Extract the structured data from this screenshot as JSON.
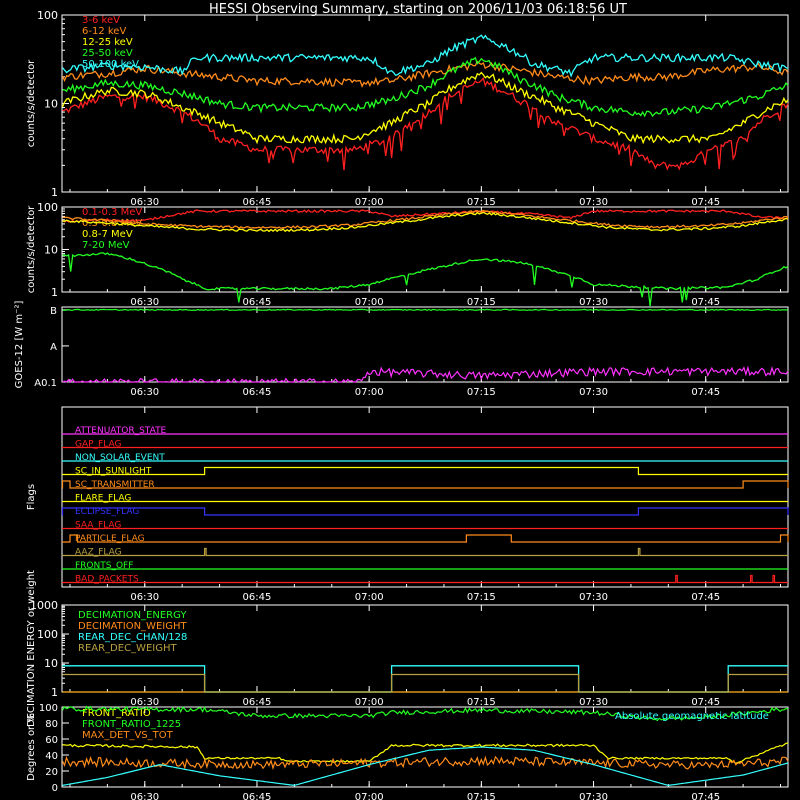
{
  "title": "HESSI Observing Summary, starting on 2006/11/03 06:18:56 UT",
  "colors": {
    "background": "#000000",
    "axes": "#ffffff",
    "red": "#ff2020",
    "orange": "#ff8c1a",
    "yellow": "#ffff00",
    "green": "#22ff22",
    "cyan": "#33ffff",
    "magenta": "#ff33ff",
    "blue": "#3333ff",
    "olive": "#b8a040"
  },
  "x_axis": {
    "start": "06:18:56",
    "end": "07:56:00",
    "tick_labels": [
      "06:30",
      "06:45",
      "07:00",
      "07:15",
      "07:30",
      "07:45"
    ]
  },
  "chart_data": [
    {
      "id": "low-energy",
      "type": "line",
      "ylabel": "counts/s/detector",
      "yscale": "log",
      "ylim": [
        1,
        100
      ],
      "ytick_labels": [
        "1",
        "10",
        "100"
      ],
      "series": [
        {
          "name": "3-6 keV",
          "color": "red",
          "x": [
            "06:19",
            "06:25",
            "06:30",
            "06:35",
            "06:40",
            "06:45",
            "06:52",
            "06:58",
            "07:03",
            "07:08",
            "07:15",
            "07:20",
            "07:25",
            "07:30",
            "07:35",
            "07:38",
            "07:42",
            "07:46",
            "07:50",
            "07:56"
          ],
          "y": [
            8,
            12,
            12,
            8,
            4,
            3,
            3,
            3,
            4,
            8,
            18,
            11,
            6,
            4,
            3,
            2,
            2,
            3,
            4,
            10
          ]
        },
        {
          "name": "6-12 keV",
          "color": "orange",
          "x": [
            "06:19",
            "06:25",
            "06:30",
            "06:35",
            "06:40",
            "06:45",
            "06:52",
            "06:58",
            "07:03",
            "07:08",
            "07:15",
            "07:20",
            "07:25",
            "07:30",
            "07:35",
            "07:40",
            "07:46",
            "07:52",
            "07:56"
          ],
          "y": [
            20,
            22,
            25,
            22,
            20,
            18,
            18,
            17,
            18,
            22,
            28,
            24,
            20,
            18,
            20,
            20,
            24,
            26,
            22
          ]
        },
        {
          "name": "12-25 keV",
          "color": "yellow",
          "x": [
            "06:19",
            "06:25",
            "06:30",
            "06:35",
            "06:40",
            "06:45",
            "06:52",
            "06:58",
            "07:03",
            "07:08",
            "07:15",
            "07:20",
            "07:25",
            "07:30",
            "07:35",
            "07:38",
            "07:42",
            "07:46",
            "07:50",
            "07:56"
          ],
          "y": [
            10,
            14,
            13,
            9,
            6,
            4,
            4,
            4,
            6,
            10,
            22,
            14,
            9,
            6,
            4,
            4,
            4,
            4,
            6,
            11
          ]
        },
        {
          "name": "25-50 keV",
          "color": "green",
          "x": [
            "06:19",
            "06:25",
            "06:30",
            "06:35",
            "06:40",
            "06:45",
            "06:52",
            "06:58",
            "07:03",
            "07:08",
            "07:15",
            "07:20",
            "07:25",
            "07:30",
            "07:35",
            "07:40",
            "07:46",
            "07:52",
            "07:56"
          ],
          "y": [
            14,
            17,
            16,
            13,
            10,
            9,
            9,
            9,
            11,
            16,
            32,
            19,
            12,
            9,
            8,
            8,
            9,
            12,
            16
          ]
        },
        {
          "name": "50-100 keV",
          "color": "cyan",
          "x": [
            "06:19",
            "06:25",
            "06:30",
            "06:35",
            "06:37",
            "06:40",
            "06:50",
            "07:00",
            "07:03",
            "07:08",
            "07:12",
            "07:15",
            "07:18",
            "07:22",
            "07:27",
            "07:30",
            "07:40",
            "07:48",
            "07:52",
            "07:56"
          ],
          "y": [
            24,
            27,
            26,
            23,
            33,
            33,
            33,
            33,
            22,
            28,
            45,
            55,
            45,
            28,
            22,
            33,
            33,
            33,
            28,
            25
          ]
        }
      ]
    },
    {
      "id": "high-energy",
      "type": "line",
      "ylabel": "counts/s/detector",
      "yscale": "log",
      "ylim": [
        1,
        100
      ],
      "ytick_labels": [
        "1",
        "10",
        "100"
      ],
      "series": [
        {
          "name": "0.1-0.3 MeV",
          "color": "red",
          "x": [
            "06:19",
            "06:25",
            "06:30",
            "06:37",
            "06:40",
            "06:50",
            "07:00",
            "07:03",
            "07:08",
            "07:15",
            "07:22",
            "07:27",
            "07:30",
            "07:40",
            "07:48",
            "07:52",
            "07:56"
          ],
          "y": [
            45,
            50,
            48,
            80,
            80,
            80,
            80,
            60,
            68,
            78,
            68,
            55,
            80,
            80,
            80,
            58,
            55
          ]
        },
        {
          "name": "0.3-0.8 MeV",
          "color": "orange",
          "x": [
            "06:19",
            "06:25",
            "06:30",
            "06:37",
            "06:45",
            "06:52",
            "06:58",
            "07:05",
            "07:15",
            "07:25",
            "07:32",
            "07:38",
            "07:45",
            "07:50",
            "07:56"
          ],
          "y": [
            55,
            48,
            40,
            35,
            33,
            34,
            38,
            52,
            80,
            52,
            38,
            34,
            36,
            42,
            58
          ]
        },
        {
          "name": "0.8-7 MeV",
          "color": "yellow",
          "x": [
            "06:19",
            "06:25",
            "06:30",
            "06:37",
            "06:45",
            "06:52",
            "06:58",
            "07:05",
            "07:15",
            "07:25",
            "07:32",
            "07:38",
            "07:45",
            "07:50",
            "07:56"
          ],
          "y": [
            48,
            42,
            36,
            30,
            28,
            29,
            33,
            46,
            72,
            46,
            33,
            29,
            31,
            36,
            52
          ]
        },
        {
          "name": "7-20 MeV",
          "color": "green",
          "x": [
            "06:19",
            "06:25",
            "06:28",
            "06:31",
            "06:35",
            "06:38",
            "06:45",
            "06:55",
            "07:00",
            "07:05",
            "07:10",
            "07:15",
            "07:20",
            "07:25",
            "07:30",
            "07:40",
            "07:48",
            "07:52",
            "07:56"
          ],
          "y": [
            7,
            8,
            6,
            4,
            2,
            1.2,
            1.2,
            1.2,
            1.5,
            2.5,
            4,
            6,
            5,
            3,
            1.5,
            1.2,
            1.3,
            2,
            4
          ]
        }
      ]
    },
    {
      "id": "goes",
      "type": "line",
      "ylabel": "GOES-12 [W m⁻²]",
      "yscale": "log",
      "ytick_labels": [
        "A0.1",
        "A",
        "B"
      ],
      "series": [
        {
          "color": "green",
          "x": [
            "06:19",
            "06:40",
            "07:00",
            "07:20",
            "07:40",
            "07:56"
          ],
          "y": [
            "B",
            "B",
            "B",
            "B",
            "B",
            "B"
          ]
        },
        {
          "color": "magenta",
          "x": [
            "06:19",
            "06:59",
            "07:00",
            "07:15",
            "07:30",
            "07:56"
          ],
          "y": [
            "A0.1",
            "A0.1",
            "A0.2",
            "A0.15",
            "A0.2",
            "A0.2"
          ]
        }
      ]
    },
    {
      "id": "flags",
      "type": "line",
      "ylabel": "Flags",
      "series": [
        {
          "name": "ATTENUATOR_STATE",
          "color": "magenta",
          "on": []
        },
        {
          "name": "GAP_FLAG",
          "color": "red",
          "on": []
        },
        {
          "name": "NON_SOLAR_EVENT",
          "color": "cyan",
          "on": []
        },
        {
          "name": "SC_IN_SUNLIGHT",
          "color": "yellow",
          "on": [
            [
              "06:38",
              "07:36"
            ]
          ]
        },
        {
          "name": "SC_TRANSMITTER",
          "color": "orange",
          "on": [
            [
              "06:19",
              "06:20"
            ],
            [
              "07:50",
              "07:56"
            ]
          ]
        },
        {
          "name": "FLARE_FLAG",
          "color": "yellow",
          "on": []
        },
        {
          "name": "ECLIPSE_FLAG",
          "color": "blue",
          "on": [
            [
              "06:19",
              "06:38"
            ],
            [
              "07:36",
              "07:56"
            ]
          ]
        },
        {
          "name": "SAA_FLAG",
          "color": "red",
          "on": []
        },
        {
          "name": "PARTICLE_FLAG",
          "color": "orange",
          "on": [
            [
              "06:20",
              "06:21"
            ],
            [
              "07:13",
              "07:19"
            ],
            [
              "07:55",
              "07:56"
            ]
          ]
        },
        {
          "name": "AAZ_FLAG",
          "color": "olive",
          "on": [
            [
              "06:38",
              "06:38"
            ],
            [
              "07:36",
              "07:36"
            ]
          ]
        },
        {
          "name": "FRONTS_OFF",
          "color": "green",
          "on": []
        },
        {
          "name": "BAD_PACKETS",
          "color": "red",
          "on": [
            [
              "07:41",
              "07:41"
            ],
            [
              "07:51",
              "07:51"
            ],
            [
              "07:54",
              "07:54"
            ]
          ]
        }
      ]
    },
    {
      "id": "decimation",
      "type": "line",
      "ylabel": "DECIMATION ENERGY or weight",
      "yscale": "log",
      "ylim": [
        1,
        1000
      ],
      "ytick_labels": [
        "1",
        "10",
        "100",
        "1000"
      ],
      "series": [
        {
          "name": "DECIMATION_ENERGY",
          "color": "green",
          "x": [
            "06:19",
            "07:56"
          ],
          "y": [
            1,
            1
          ]
        },
        {
          "name": "DECIMATION_WEIGHT",
          "color": "orange",
          "x": [
            "06:19",
            "07:56"
          ],
          "y": [
            1,
            1
          ]
        },
        {
          "name": "REAR_DEC_CHAN/128",
          "color": "cyan",
          "x": [
            "06:19",
            "06:38",
            "06:38",
            "07:03",
            "07:03",
            "07:28",
            "07:28",
            "07:48",
            "07:48",
            "07:56"
          ],
          "y": [
            8,
            8,
            1,
            1,
            8,
            8,
            1,
            1,
            8,
            8
          ]
        },
        {
          "name": "REAR_DEC_WEIGHT",
          "color": "olive",
          "x": [
            "06:19",
            "06:38",
            "06:38",
            "07:03",
            "07:03",
            "07:28",
            "07:28",
            "07:48",
            "07:48",
            "07:56"
          ],
          "y": [
            4,
            4,
            1,
            1,
            4,
            4,
            1,
            1,
            4,
            4
          ]
        }
      ]
    },
    {
      "id": "ratios",
      "type": "line",
      "ylabel": "Degrees or %",
      "ylim": [
        0,
        100
      ],
      "ytick_labels": [
        "0",
        "20",
        "40",
        "60",
        "80",
        "100"
      ],
      "annotation": "Absolute geomagnetic latitude",
      "series": [
        {
          "name": "FRONT_RATIO",
          "color": "yellow",
          "x": [
            "06:19",
            "06:37",
            "06:38",
            "06:48",
            "06:49",
            "07:00",
            "07:03",
            "07:30",
            "07:32",
            "07:48",
            "07:49",
            "07:56"
          ],
          "y": [
            52,
            50,
            36,
            36,
            32,
            32,
            52,
            52,
            36,
            36,
            30,
            55
          ]
        },
        {
          "name": "FRONT_RATIO_1225",
          "color": "green",
          "x": [
            "06:19",
            "06:30",
            "06:38",
            "06:45",
            "07:00",
            "07:03",
            "07:15",
            "07:30",
            "07:38",
            "07:45",
            "07:56"
          ],
          "y": [
            98,
            97,
            97,
            89,
            89,
            93,
            96,
            93,
            85,
            87,
            98
          ]
        },
        {
          "name": "MAX_DET_VS_TOT",
          "color": "orange",
          "x": [
            "06:19",
            "06:30",
            "06:45",
            "07:00",
            "07:15",
            "07:30",
            "07:45",
            "07:56"
          ],
          "y": [
            32,
            30,
            28,
            30,
            33,
            30,
            27,
            32
          ]
        },
        {
          "name": "Absolute geomagnetic latitude",
          "color": "cyan",
          "x": [
            "06:19",
            "06:25",
            "06:32",
            "06:40",
            "06:50",
            "07:00",
            "07:08",
            "07:15",
            "07:22",
            "07:30",
            "07:40",
            "07:50",
            "07:56"
          ],
          "y": [
            2,
            12,
            28,
            14,
            2,
            28,
            46,
            50,
            46,
            28,
            2,
            15,
            30
          ]
        }
      ]
    }
  ]
}
